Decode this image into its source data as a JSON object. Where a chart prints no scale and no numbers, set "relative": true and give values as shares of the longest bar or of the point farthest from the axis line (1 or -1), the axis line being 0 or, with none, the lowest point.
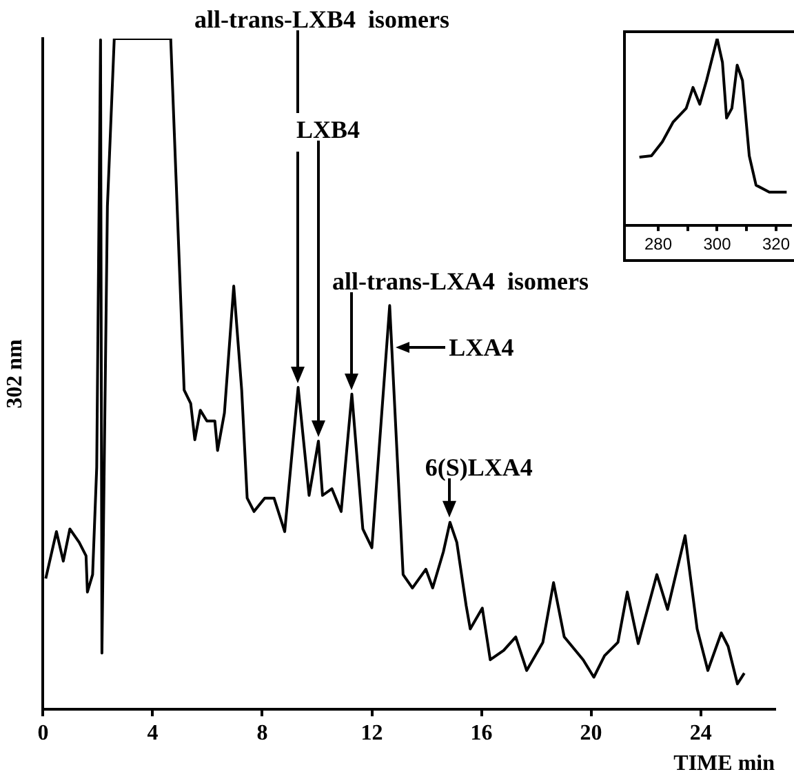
{
  "chart_data": [
    {
      "type": "line",
      "relative": true,
      "xlabel": "TIME min",
      "ylabel": "302 nm",
      "xlim": [
        0,
        26.7
      ],
      "xticks": [
        0,
        4,
        8,
        12,
        16,
        20,
        24
      ],
      "marker": "none",
      "series": [
        {
          "color": "#000000",
          "x": [
            0.1,
            0.49,
            0.74,
            0.98,
            1.32,
            1.57,
            1.62,
            1.81,
            1.96,
            2.1,
            2.15,
            2.35,
            2.6,
            4.66,
            5.15,
            5.39,
            5.54,
            5.74,
            5.98,
            6.27,
            6.37,
            6.62,
            6.96,
            7.25,
            7.45,
            7.7,
            8.09,
            8.43,
            8.82,
            9.31,
            9.71,
            10.05,
            10.2,
            10.54,
            10.88,
            11.27,
            11.67,
            12.0,
            12.65,
            13.14,
            13.48,
            13.97,
            14.22,
            14.61,
            14.85,
            15.1,
            15.44,
            15.59,
            16.03,
            16.32,
            16.81,
            17.25,
            17.65,
            18.24,
            18.63,
            19.02,
            19.71,
            20.1,
            20.49,
            20.98,
            21.32,
            21.72,
            22.4,
            22.79,
            23.43,
            23.87,
            24.26,
            24.75,
            25.0,
            25.34,
            25.59
          ],
          "values": [
            0.195,
            0.265,
            0.221,
            0.269,
            0.249,
            0.229,
            0.175,
            0.201,
            0.361,
            0.998,
            0.084,
            0.75,
            1.0,
            1.0,
            0.476,
            0.456,
            0.402,
            0.446,
            0.43,
            0.43,
            0.386,
            0.442,
            0.631,
            0.476,
            0.315,
            0.295,
            0.315,
            0.315,
            0.265,
            0.48,
            0.319,
            0.4,
            0.319,
            0.329,
            0.295,
            0.47,
            0.269,
            0.241,
            0.602,
            0.201,
            0.181,
            0.209,
            0.181,
            0.235,
            0.279,
            0.249,
            0.155,
            0.12,
            0.151,
            0.074,
            0.088,
            0.108,
            0.058,
            0.1,
            0.189,
            0.108,
            0.074,
            0.048,
            0.08,
            0.1,
            0.175,
            0.098,
            0.201,
            0.149,
            0.259,
            0.12,
            0.058,
            0.114,
            0.094,
            0.038,
            0.054
          ]
        }
      ],
      "annotations": [
        "all-trans-LXB4  isomers",
        "LXB4",
        "all-trans-LXA4  isomers",
        {
          "text": "LXA4",
          "x": 12.65,
          "y": 0.54
        },
        {
          "text": "6(S)LXA4",
          "x": 14.85,
          "y": 0.28
        }
      ]
    },
    {
      "type": "line",
      "relative": true,
      "xlim": [
        269,
        325
      ],
      "xticks": [
        280,
        {
          "value": 290,
          "label": null
        },
        300,
        {
          "value": 310,
          "label": null
        },
        320
      ],
      "marker": "none",
      "series": [
        {
          "color": "#000000",
          "x": [
            273.6,
            277.7,
            281.4,
            285,
            289.5,
            291.8,
            294.1,
            296.4,
            300,
            301.8,
            303.2,
            305,
            306.8,
            308.6,
            310.9,
            313.2,
            317.7,
            323.6
          ],
          "values": [
            0.366,
            0.373,
            0.448,
            0.552,
            0.627,
            0.739,
            0.649,
            0.776,
            1.0,
            0.873,
            0.575,
            0.627,
            0.858,
            0.776,
            0.373,
            0.216,
            0.179,
            0.179
          ]
        }
      ]
    }
  ]
}
